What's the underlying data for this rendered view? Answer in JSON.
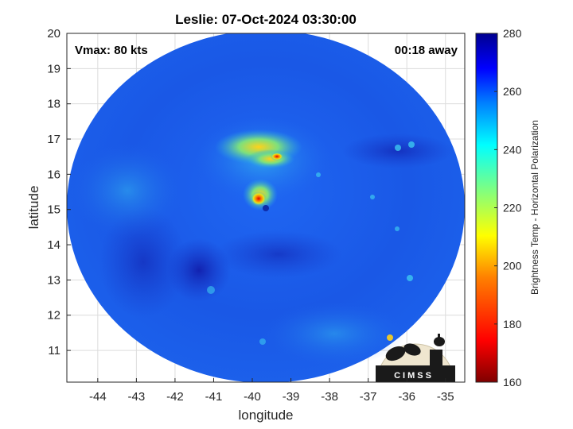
{
  "title": "Leslie: 07-Oct-2024 03:30:00",
  "vmax_label": "Vmax: 80 kts",
  "time_label": "00:18 away",
  "xlabel": "longitude",
  "ylabel": "latitude",
  "colorbar_label": "Brightness Temp - Horizontal Polarization",
  "logo_text": "CIMSS",
  "chart_data": {
    "type": "heatmap",
    "title": "Leslie: 07-Oct-2024 03:30:00",
    "xlabel": "longitude",
    "ylabel": "latitude",
    "xlim": [
      -44.8,
      -34.5
    ],
    "ylim": [
      10.1,
      20
    ],
    "x_ticks": [
      -44,
      -43,
      -42,
      -41,
      -40,
      -39,
      -38,
      -37,
      -36,
      -35
    ],
    "y_ticks": [
      11,
      12,
      13,
      14,
      15,
      16,
      17,
      18,
      19,
      20
    ],
    "grid": true,
    "colorbar": {
      "label": "Brightness Temp - Horizontal Polarization",
      "min": 160,
      "max": 280,
      "ticks": [
        160,
        180,
        200,
        220,
        240,
        260,
        280
      ],
      "colormap": "jet"
    },
    "swath_center": [
      -39.6,
      15.1
    ],
    "storm_center": [
      -39.6,
      15.1
    ],
    "annotations": [
      "Vmax: 80 kts",
      "00:18 away"
    ]
  },
  "colors": {
    "background_field": "#1e56e6",
    "cold_core": "#c80000",
    "frame": "#262626",
    "grid": "#d9d9d9"
  }
}
